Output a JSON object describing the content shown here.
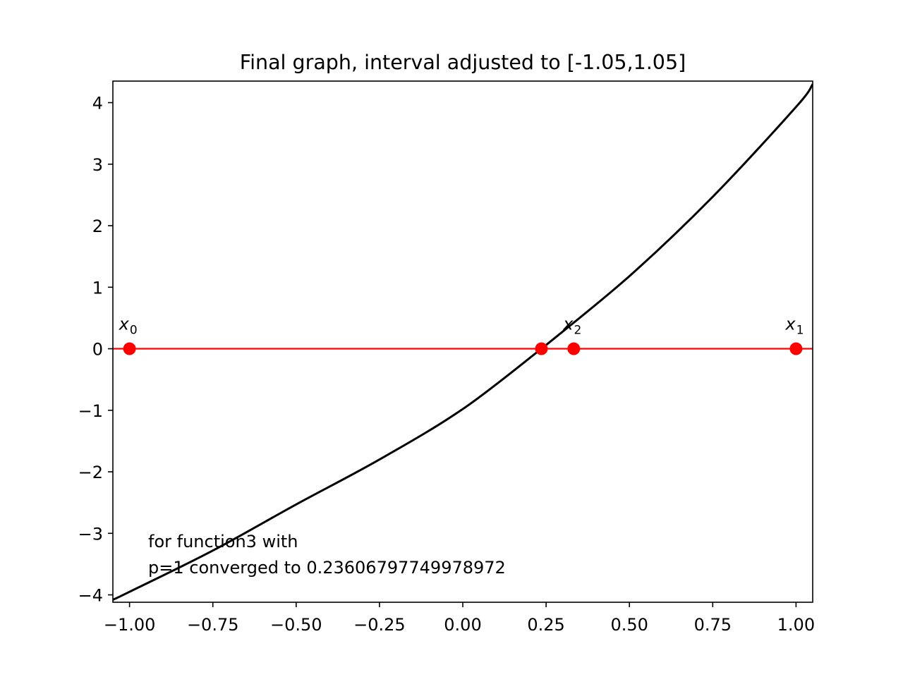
{
  "chart_data": {
    "type": "line",
    "title": "Final graph, interval adjusted to [-1.05,1.05]",
    "xlabel": "",
    "ylabel": "",
    "xlim": [
      -1.05,
      1.05
    ],
    "ylim": [
      -4.12,
      4.35
    ],
    "grid": false,
    "x_ticks": [
      -1.0,
      -0.75,
      -0.5,
      -0.25,
      0.0,
      0.25,
      0.5,
      0.75,
      1.0
    ],
    "x_tick_labels": [
      "−1.00",
      "−0.75",
      "−0.50",
      "−0.25",
      "0.00",
      "0.25",
      "0.50",
      "0.75",
      "1.00"
    ],
    "y_ticks": [
      -4,
      -3,
      -2,
      -1,
      0,
      1,
      2,
      3,
      4
    ],
    "y_tick_labels": [
      "−4",
      "−3",
      "−2",
      "−1",
      "0",
      "1",
      "2",
      "3",
      "4"
    ],
    "series": [
      {
        "color": "#000000",
        "points": [
          [
            -1.05,
            -4.08
          ],
          [
            -1.0,
            -3.95
          ],
          [
            -0.75,
            -3.28
          ],
          [
            -0.5,
            -2.53
          ],
          [
            -0.25,
            -1.8
          ],
          [
            0.0,
            -0.98
          ],
          [
            0.236,
            0.0
          ],
          [
            0.25,
            0.06
          ],
          [
            0.5,
            1.18
          ],
          [
            0.75,
            2.47
          ],
          [
            1.0,
            3.93
          ],
          [
            1.05,
            4.3
          ]
        ]
      },
      {
        "color": "#ff0000",
        "points": [
          [
            -1.05,
            0
          ],
          [
            1.05,
            0
          ]
        ]
      }
    ],
    "markers": {
      "color": "#ff0000",
      "points": [
        [
          -1.0,
          0
        ],
        [
          0.236,
          0
        ],
        [
          0.333,
          0
        ],
        [
          1.0,
          0
        ]
      ]
    },
    "point_labels": [
      {
        "base": "x",
        "sub": "0",
        "x": -1.0,
        "y": 0
      },
      {
        "base": "x",
        "sub": "2",
        "x": 0.333,
        "y": 0
      },
      {
        "base": "x",
        "sub": "1",
        "x": 1.0,
        "y": 0
      }
    ],
    "annotation": {
      "lines": [
        "for function3 with",
        "p=1 converged to 0.23606797749978972"
      ]
    }
  }
}
